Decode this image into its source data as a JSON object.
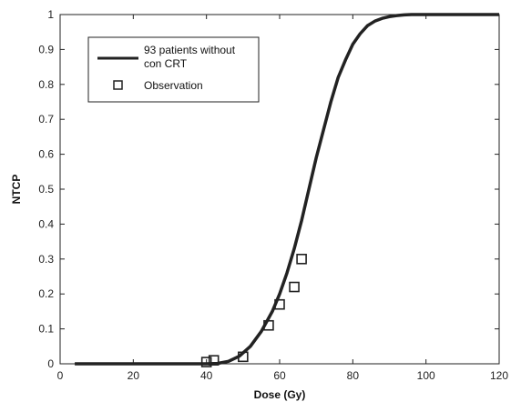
{
  "chart_data": {
    "type": "line",
    "title": "",
    "xlabel": "Dose (Gy)",
    "ylabel": "NTCP",
    "xlim": [
      0,
      120
    ],
    "ylim": [
      0,
      1
    ],
    "x_ticks": [
      0,
      20,
      40,
      60,
      80,
      100,
      120
    ],
    "y_ticks": [
      0,
      0.1,
      0.2,
      0.3,
      0.4,
      0.5,
      0.6,
      0.7,
      0.8,
      0.9,
      1
    ],
    "x_tick_labels": [
      "0",
      "20",
      "40",
      "60",
      "80",
      "100",
      "120"
    ],
    "y_tick_labels": [
      "0",
      "0.1",
      "0.2",
      "0.3",
      "0.4",
      "0.5",
      "0.6",
      "0.7",
      "0.8",
      "0.9",
      "1"
    ],
    "grid": false,
    "legend_position": "top-left",
    "series": [
      {
        "name": "93 patients without con CRT",
        "name_lines": [
          "93 patients without",
          "con CRT"
        ],
        "kind": "line",
        "color": "#222222",
        "x": [
          4,
          30,
          40,
          43,
          46,
          49,
          52,
          55,
          58,
          60,
          62,
          64,
          66,
          68,
          70,
          72,
          74,
          76,
          78,
          80,
          82,
          84,
          86,
          88,
          90,
          92,
          94,
          96,
          98,
          100,
          110,
          120
        ],
        "y": [
          0,
          0,
          0,
          0.001,
          0.007,
          0.022,
          0.05,
          0.093,
          0.15,
          0.2,
          0.26,
          0.33,
          0.41,
          0.5,
          0.59,
          0.67,
          0.75,
          0.82,
          0.87,
          0.915,
          0.945,
          0.968,
          0.981,
          0.989,
          0.994,
          0.997,
          0.999,
          1,
          1,
          1,
          1,
          1
        ]
      },
      {
        "name": "Observation",
        "kind": "scatter",
        "marker": "square",
        "color": "#222222",
        "x": [
          40,
          42,
          50,
          57,
          60,
          64,
          66
        ],
        "y": [
          0.005,
          0.01,
          0.02,
          0.11,
          0.17,
          0.22,
          0.3
        ]
      }
    ]
  }
}
